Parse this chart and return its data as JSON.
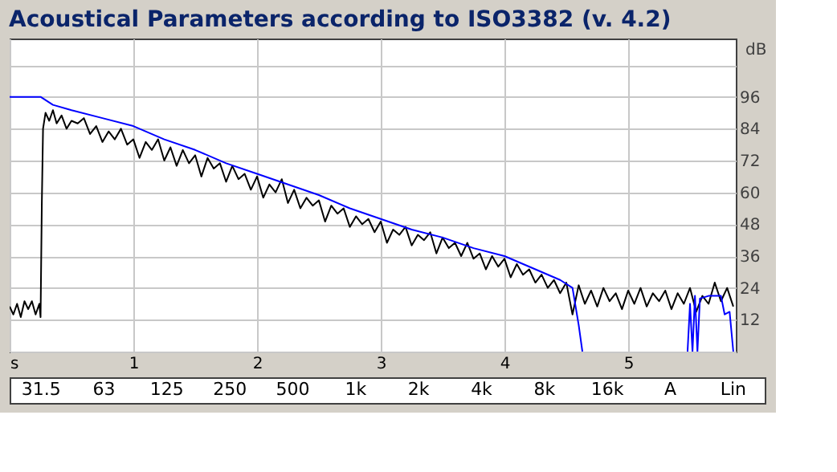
{
  "chart_data": {
    "type": "line",
    "title": "Acoustical Parameters according to ISO3382 (v. 4.2)",
    "ylabel": "dB",
    "xlim": [
      0,
      5.87
    ],
    "ylim": [
      0,
      118
    ],
    "xticks": [
      {
        "value": 0,
        "label": "s"
      },
      1,
      2,
      3,
      4,
      5
    ],
    "yticks": [
      {
        "value": 0,
        "label": null
      },
      12,
      24,
      36,
      48,
      60,
      72,
      84,
      96,
      {
        "value": 108,
        "label": null
      }
    ],
    "grid": true,
    "marker": "none",
    "line_style": "solid",
    "series": [
      {
        "color": "#000000",
        "x": [
          0,
          0.03,
          0.06,
          0.09,
          0.12,
          0.15,
          0.18,
          0.21,
          0.24,
          0.25,
          0.26,
          0.27,
          0.29,
          0.32,
          0.35,
          0.38,
          0.42,
          0.46,
          0.5,
          0.55,
          0.6,
          0.65,
          0.7,
          0.75,
          0.8,
          0.85,
          0.9,
          0.95,
          1.0,
          1.05,
          1.1,
          1.15,
          1.2,
          1.25,
          1.3,
          1.35,
          1.4,
          1.45,
          1.5,
          1.55,
          1.6,
          1.65,
          1.7,
          1.75,
          1.8,
          1.85,
          1.9,
          1.95,
          2.0,
          2.05,
          2.1,
          2.15,
          2.2,
          2.25,
          2.3,
          2.35,
          2.4,
          2.45,
          2.5,
          2.55,
          2.6,
          2.65,
          2.7,
          2.75,
          2.8,
          2.85,
          2.9,
          2.95,
          3.0,
          3.05,
          3.1,
          3.15,
          3.2,
          3.25,
          3.3,
          3.35,
          3.4,
          3.45,
          3.5,
          3.55,
          3.6,
          3.65,
          3.7,
          3.75,
          3.8,
          3.85,
          3.9,
          3.95,
          4.0,
          4.05,
          4.1,
          4.15,
          4.2,
          4.25,
          4.3,
          4.35,
          4.4,
          4.45,
          4.5,
          4.55,
          4.6,
          4.65,
          4.7,
          4.75,
          4.8,
          4.85,
          4.9,
          4.95,
          5.0,
          5.05,
          5.1,
          5.15,
          5.2,
          5.25,
          5.3,
          5.35,
          5.4,
          5.45,
          5.5,
          5.55,
          5.6,
          5.65,
          5.7,
          5.75,
          5.8,
          5.85
        ],
        "values": [
          17,
          14,
          18,
          13,
          19,
          16,
          19,
          14,
          18,
          13,
          55,
          84,
          90,
          87,
          91,
          86,
          89,
          84,
          87,
          86,
          88,
          82,
          85,
          79,
          83,
          80,
          84,
          78,
          80,
          73,
          79,
          76,
          80,
          72,
          77,
          70,
          76,
          71,
          74,
          66,
          73,
          69,
          71,
          64,
          70,
          65,
          67,
          61,
          66,
          58,
          63,
          60,
          65,
          56,
          61,
          54,
          58,
          55,
          57,
          49,
          55,
          52,
          54,
          47,
          51,
          48,
          50,
          45,
          49,
          41,
          46,
          44,
          47,
          40,
          44,
          42,
          45,
          37,
          43,
          39,
          41,
          36,
          41,
          35,
          37,
          31,
          36,
          32,
          35,
          28,
          33,
          29,
          31,
          26,
          29,
          24,
          27,
          22,
          26,
          14,
          25,
          18,
          23,
          17,
          24,
          19,
          22,
          16,
          23,
          18,
          24,
          17,
          22,
          19,
          23,
          16,
          22,
          18,
          24,
          15,
          21,
          18,
          26,
          19,
          24,
          17
        ]
      },
      {
        "color": "#0000ff",
        "x": [
          0,
          0.25,
          0.35,
          0.5,
          0.75,
          1.0,
          1.25,
          1.5,
          1.75,
          2.0,
          2.25,
          2.5,
          2.75,
          3.0,
          3.25,
          3.5,
          3.75,
          4.0,
          4.25,
          4.45,
          4.55,
          4.6,
          4.63,
          4.64,
          5.47,
          5.48,
          5.5,
          5.52,
          5.54,
          5.56,
          5.58,
          5.65,
          5.75,
          5.78,
          5.82,
          5.85
        ],
        "values": [
          96,
          96,
          93,
          91,
          88,
          85,
          80,
          76,
          71,
          67,
          63,
          59,
          54,
          50,
          46,
          43,
          39,
          36,
          31,
          27,
          24,
          10,
          0,
          null,
          null,
          0,
          18,
          0,
          21,
          0,
          20,
          21,
          21,
          14,
          15,
          0
        ]
      }
    ],
    "annotations": [
      "31.5",
      "63",
      "125",
      "250",
      "500",
      "1k",
      "2k",
      "4k",
      "8k",
      "16k",
      "A",
      "Lin"
    ]
  }
}
